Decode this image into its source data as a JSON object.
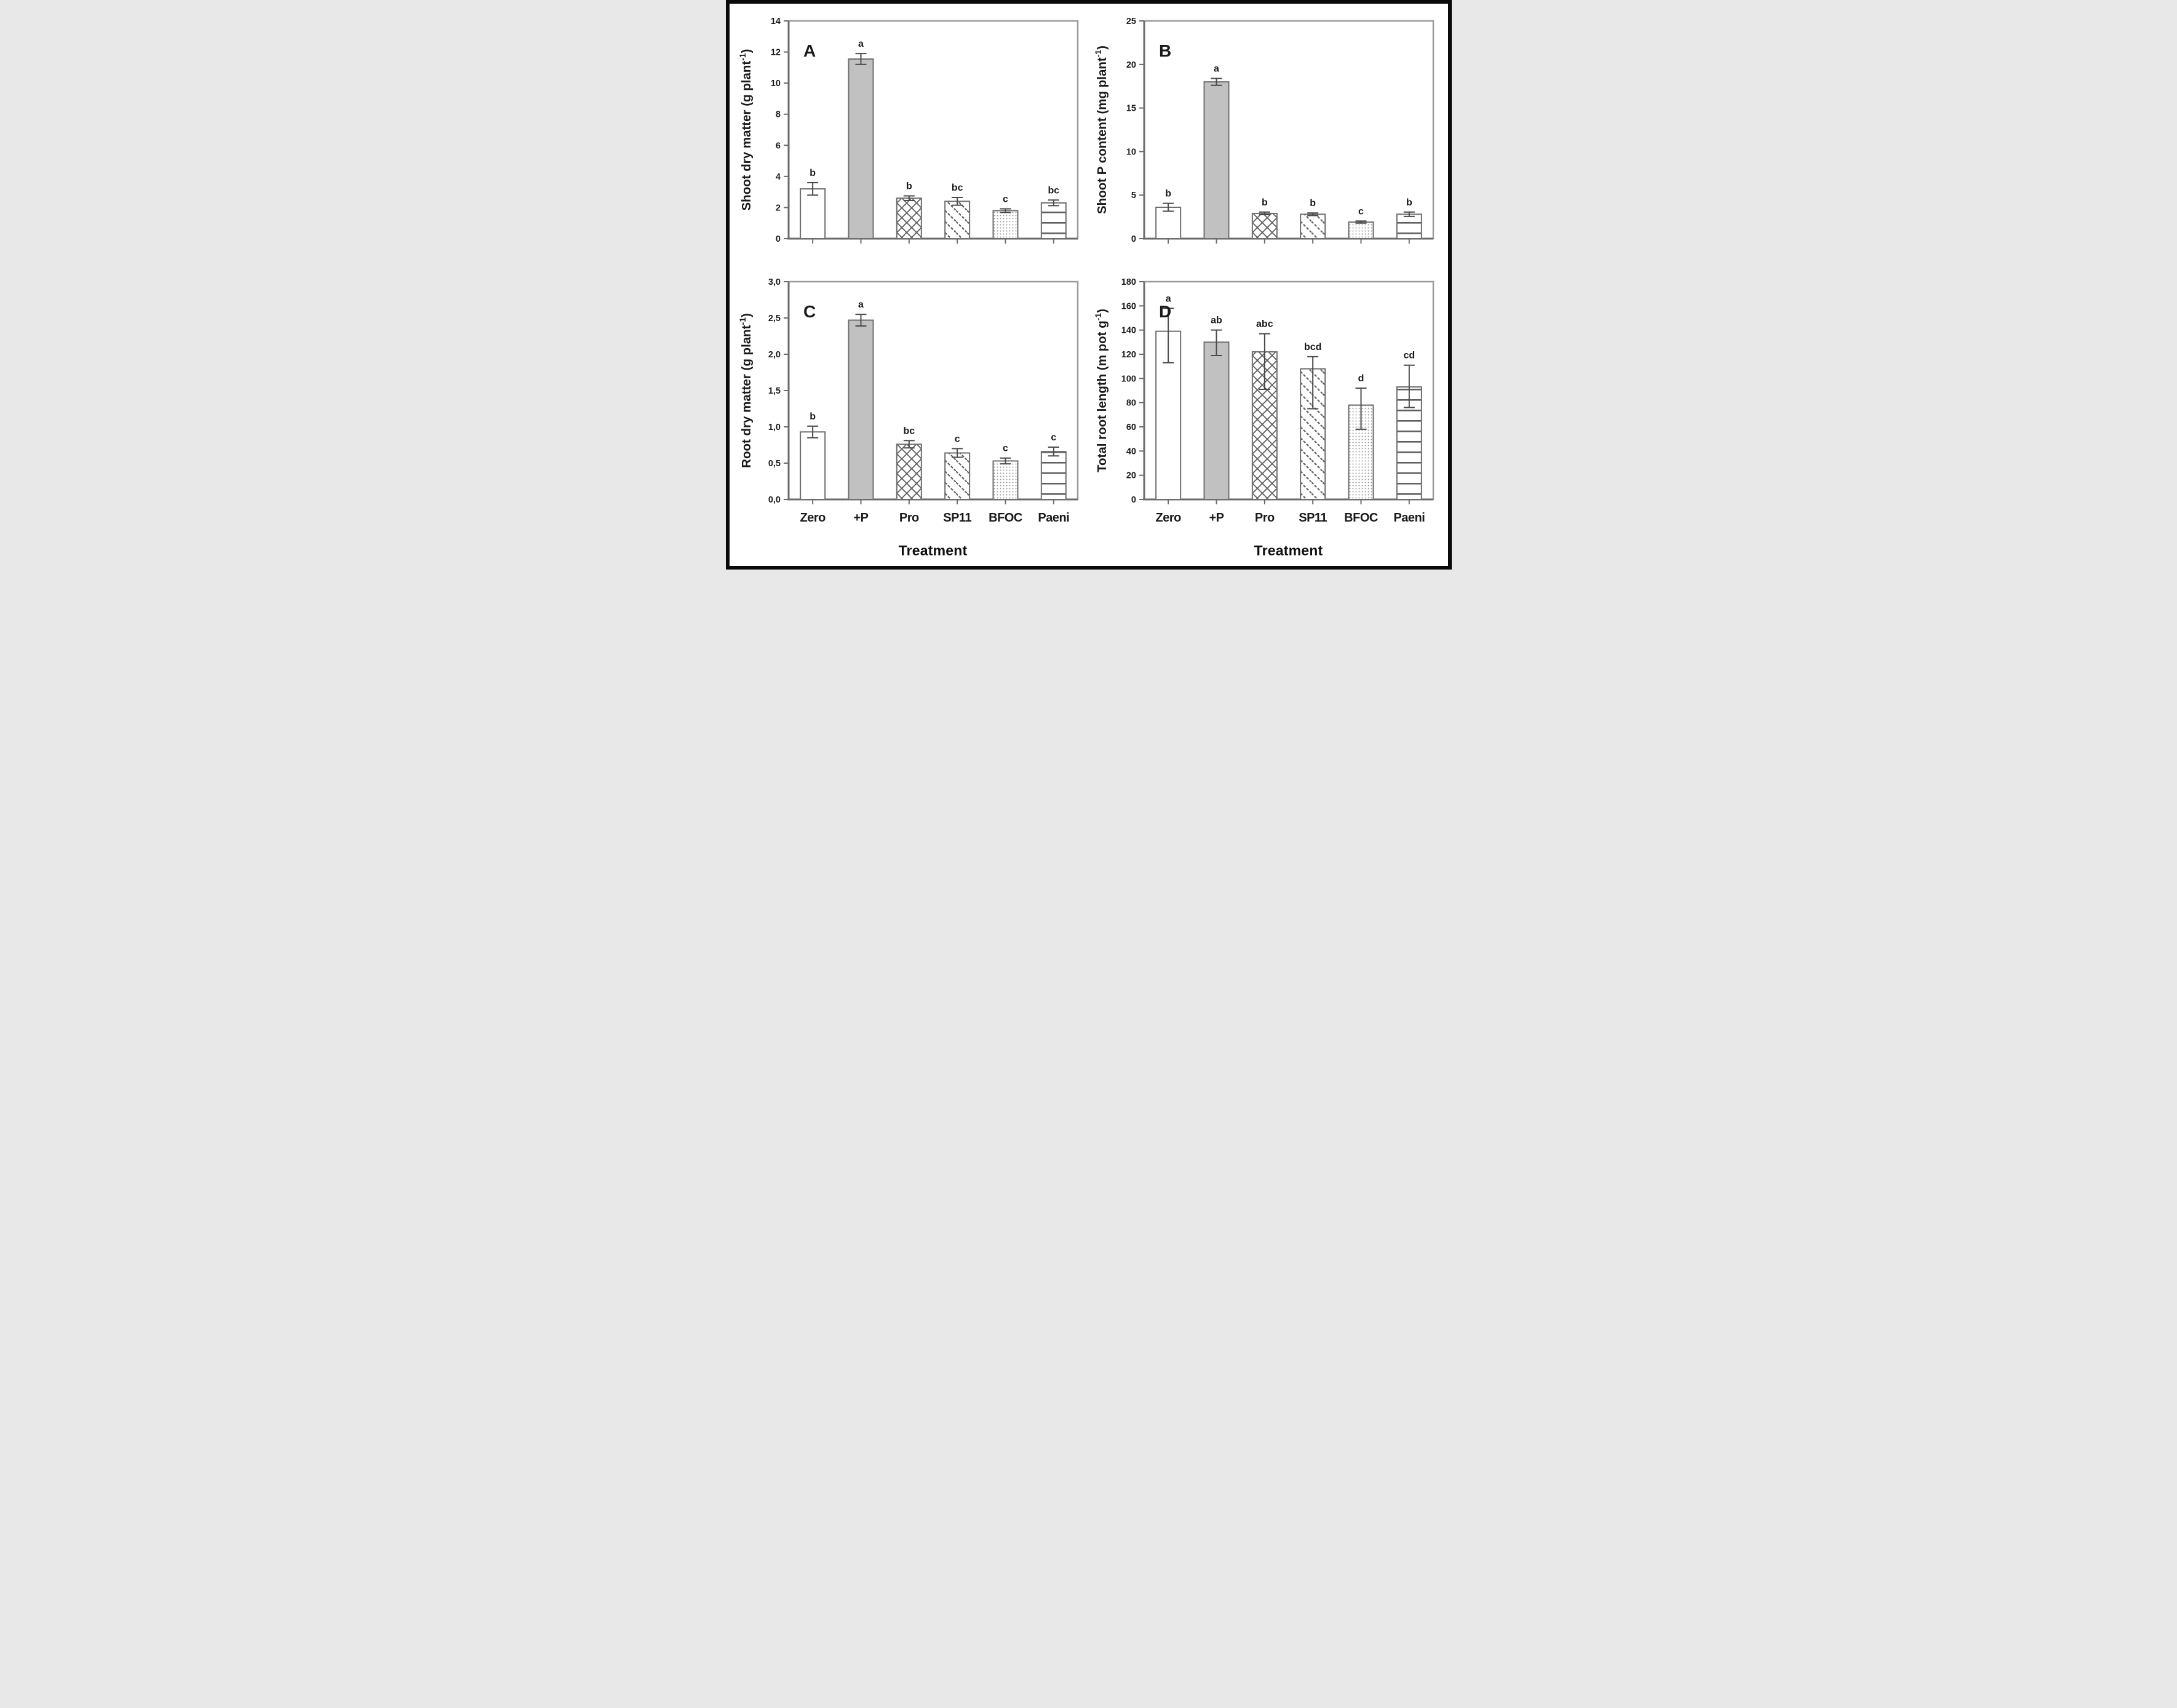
{
  "figure": {
    "xlabel": "Treatment",
    "categories": [
      "Zero",
      "+P",
      "Pro",
      "SP11",
      "BFOC",
      "Paeni"
    ],
    "pattern_by_category": {
      "Zero": "plain",
      "+P": "solid",
      "Pro": "crosshatch",
      "SP11": "diagonal",
      "BFOC": "dots",
      "Paeni": "hlines"
    },
    "colors": {
      "background": "#ffffff",
      "outer_border": "#0a0a0a",
      "frame": "#9b9b9b",
      "axis": "#6b6b6b",
      "bar_stroke": "#6f6f6f",
      "bar_fill_solid": "#c1c1c1",
      "pattern_stroke": "#606060",
      "dot_fill": "#969696",
      "error_bar": "#4a4a4a",
      "text": "#1a1a1a"
    }
  },
  "chart_data": [
    {
      "panel": "A",
      "type": "bar",
      "ylabel": {
        "pre": "Shoot dry matter (g plant",
        "sup": "-1",
        "post": ")"
      },
      "ylim": [
        0,
        14
      ],
      "yticks": [
        {
          "v": 0,
          "label": "0"
        },
        {
          "v": 2,
          "label": "2"
        },
        {
          "v": 4,
          "label": "4"
        },
        {
          "v": 6,
          "label": "6"
        },
        {
          "v": 8,
          "label": "8"
        },
        {
          "v": 10,
          "label": "10"
        },
        {
          "v": 12,
          "label": "12"
        },
        {
          "v": 14,
          "label": "14"
        }
      ],
      "show_x_labels": false,
      "bars": [
        {
          "category": "Zero",
          "value": 3.2,
          "err_up": 0.4,
          "err_down": 0.4,
          "sig": "b"
        },
        {
          "category": "+P",
          "value": 11.55,
          "err_up": 0.35,
          "err_down": 0.35,
          "sig": "a"
        },
        {
          "category": "Pro",
          "value": 2.6,
          "err_up": 0.15,
          "err_down": 0.15,
          "sig": "b"
        },
        {
          "category": "SP11",
          "value": 2.4,
          "err_up": 0.25,
          "err_down": 0.25,
          "sig": "bc"
        },
        {
          "category": "BFOC",
          "value": 1.8,
          "err_up": 0.12,
          "err_down": 0.12,
          "sig": "c"
        },
        {
          "category": "Paeni",
          "value": 2.3,
          "err_up": 0.18,
          "err_down": 0.18,
          "sig": "bc"
        }
      ]
    },
    {
      "panel": "B",
      "type": "bar",
      "ylabel": {
        "pre": "Shoot P content (mg plant",
        "sup": "-1",
        "post": ")"
      },
      "ylim": [
        0,
        25
      ],
      "yticks": [
        {
          "v": 0,
          "label": "0"
        },
        {
          "v": 5,
          "label": "5"
        },
        {
          "v": 10,
          "label": "10"
        },
        {
          "v": 15,
          "label": "15"
        },
        {
          "v": 20,
          "label": "20"
        },
        {
          "v": 25,
          "label": "25"
        }
      ],
      "show_x_labels": false,
      "bars": [
        {
          "category": "Zero",
          "value": 3.6,
          "err_up": 0.45,
          "err_down": 0.45,
          "sig": "b"
        },
        {
          "category": "+P",
          "value": 18.0,
          "err_up": 0.4,
          "err_down": 0.4,
          "sig": "a"
        },
        {
          "category": "Pro",
          "value": 2.9,
          "err_up": 0.15,
          "err_down": 0.15,
          "sig": "b"
        },
        {
          "category": "SP11",
          "value": 2.8,
          "err_up": 0.15,
          "err_down": 0.15,
          "sig": "b"
        },
        {
          "category": "BFOC",
          "value": 1.9,
          "err_up": 0.12,
          "err_down": 0.12,
          "sig": "c"
        },
        {
          "category": "Paeni",
          "value": 2.8,
          "err_up": 0.25,
          "err_down": 0.25,
          "sig": "b"
        }
      ]
    },
    {
      "panel": "C",
      "type": "bar",
      "ylabel": {
        "pre": "Root dry matter (g plant",
        "sup": "-1",
        "post": ")"
      },
      "ylim": [
        0,
        3
      ],
      "yticks": [
        {
          "v": 0,
          "label": "0,0"
        },
        {
          "v": 0.5,
          "label": "0,5"
        },
        {
          "v": 1,
          "label": "1,0"
        },
        {
          "v": 1.5,
          "label": "1,5"
        },
        {
          "v": 2,
          "label": "2,0"
        },
        {
          "v": 2.5,
          "label": "2,5"
        },
        {
          "v": 3,
          "label": "3,0"
        }
      ],
      "show_x_labels": true,
      "bars": [
        {
          "category": "Zero",
          "value": 0.93,
          "err_up": 0.08,
          "err_down": 0.08,
          "sig": "b"
        },
        {
          "category": "+P",
          "value": 2.47,
          "err_up": 0.08,
          "err_down": 0.08,
          "sig": "a"
        },
        {
          "category": "Pro",
          "value": 0.76,
          "err_up": 0.05,
          "err_down": 0.05,
          "sig": "bc"
        },
        {
          "category": "SP11",
          "value": 0.64,
          "err_up": 0.06,
          "err_down": 0.06,
          "sig": "c"
        },
        {
          "category": "BFOC",
          "value": 0.53,
          "err_up": 0.04,
          "err_down": 0.04,
          "sig": "c"
        },
        {
          "category": "Paeni",
          "value": 0.66,
          "err_up": 0.06,
          "err_down": 0.06,
          "sig": "c"
        }
      ]
    },
    {
      "panel": "D",
      "type": "bar",
      "ylabel": {
        "pre": "Total root length (m pot g",
        "sup": "-1",
        "post": ")"
      },
      "ylim": [
        0,
        180
      ],
      "yticks": [
        {
          "v": 0,
          "label": "0"
        },
        {
          "v": 20,
          "label": "20"
        },
        {
          "v": 40,
          "label": "40"
        },
        {
          "v": 60,
          "label": "60"
        },
        {
          "v": 80,
          "label": "80"
        },
        {
          "v": 100,
          "label": "100"
        },
        {
          "v": 120,
          "label": "120"
        },
        {
          "v": 140,
          "label": "140"
        },
        {
          "v": 160,
          "label": "160"
        },
        {
          "v": 180,
          "label": "180"
        }
      ],
      "show_x_labels": true,
      "bars": [
        {
          "category": "Zero",
          "value": 139,
          "err_up": 19,
          "err_down": 26,
          "sig": "a"
        },
        {
          "category": "+P",
          "value": 130,
          "err_up": 10,
          "err_down": 11,
          "sig": "ab"
        },
        {
          "category": "Pro",
          "value": 122,
          "err_up": 15,
          "err_down": 31,
          "sig": "abc"
        },
        {
          "category": "SP11",
          "value": 108,
          "err_up": 10,
          "err_down": 33,
          "sig": "bcd"
        },
        {
          "category": "BFOC",
          "value": 78,
          "err_up": 14,
          "err_down": 20,
          "sig": "d"
        },
        {
          "category": "Paeni",
          "value": 93,
          "err_up": 18,
          "err_down": 17,
          "sig": "cd"
        }
      ]
    }
  ]
}
